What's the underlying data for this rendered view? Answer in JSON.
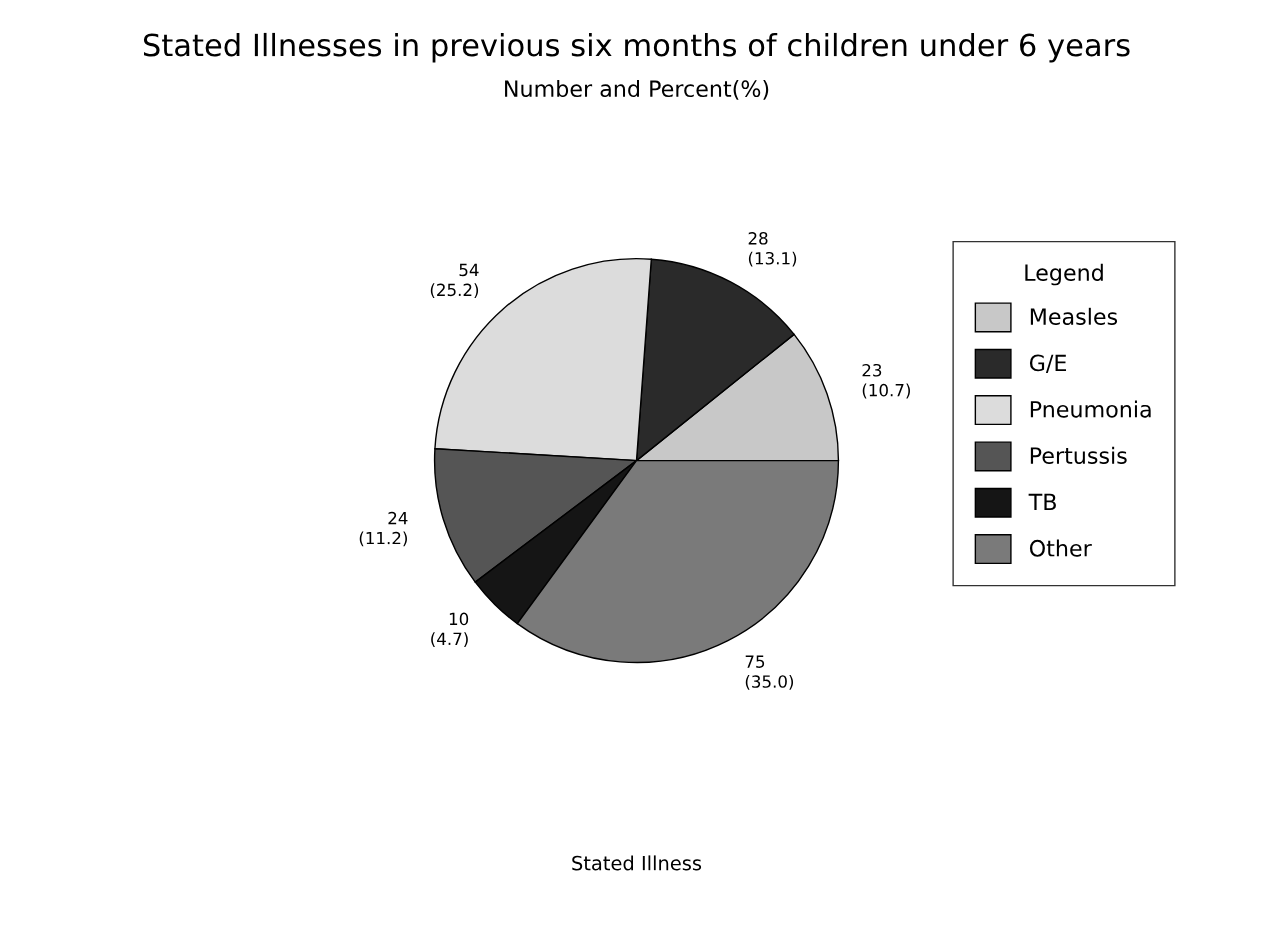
{
  "chart_data": {
    "type": "pie",
    "title": "Stated Illnesses in previous six months of children under 6 years",
    "subtitle": "Number and Percent(%)",
    "xlabel": "Stated Illness",
    "legend_title": "Legend",
    "legend": "right",
    "categories": [
      "Measles",
      "G/E",
      "Pneumonia",
      "Pertussis",
      "TB",
      "Other"
    ],
    "values": [
      23,
      28,
      54,
      24,
      10,
      75
    ],
    "value_labels": [
      "23\n(10.7)",
      "28\n(13.1)",
      "54\n(25.2)",
      "24\n(11.2)",
      "10\n(4.7)",
      "75\n(35.0)"
    ],
    "colors": [
      "#c8c8c8",
      "#2a2a2a",
      "#dcdcdc",
      "#555555",
      "#151515",
      "#7a7a7a"
    ]
  }
}
